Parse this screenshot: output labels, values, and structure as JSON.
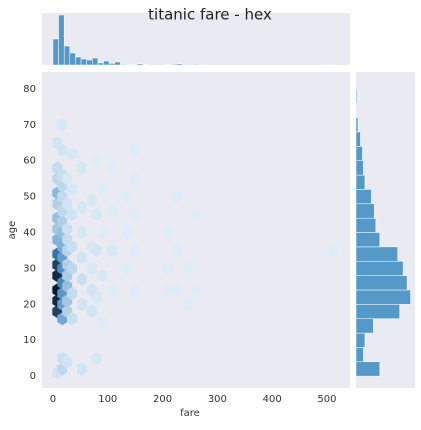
{
  "chart_data": [
    {
      "type": "hexbin",
      "title": "titanic fare - hex",
      "x_label": "fare",
      "y_label": "age",
      "xlim": [
        -20,
        542
      ],
      "ylim": [
        -3.3,
        84.7
      ],
      "xticks": [
        0,
        100,
        200,
        300,
        400,
        500
      ],
      "yticks": [
        0,
        10,
        20,
        30,
        40,
        50,
        60,
        70,
        80
      ],
      "grid": false,
      "colors": [
        "#e4f0f9",
        "#4a90c6",
        "#0c1a29"
      ],
      "x": [
        8,
        8,
        8,
        8,
        8,
        8,
        8,
        8,
        8,
        8,
        8,
        8,
        8,
        8,
        8,
        17,
        17,
        17,
        17,
        17,
        17,
        17,
        17,
        17,
        17,
        17,
        17,
        17,
        17,
        17,
        17,
        17,
        26,
        26,
        26,
        26,
        26,
        26,
        26,
        26,
        26,
        26,
        26,
        35,
        35,
        35,
        35,
        35,
        35,
        35,
        53,
        53,
        53,
        53,
        53,
        53,
        53,
        71,
        71,
        71,
        71,
        71,
        80,
        80,
        80,
        80,
        80,
        90,
        90,
        90,
        90,
        108,
        108,
        108,
        108,
        135,
        135,
        135,
        150,
        150,
        150,
        150,
        150,
        210,
        210,
        210,
        225,
        225,
        225,
        247,
        247,
        262,
        262,
        512
      ],
      "y": [
        1,
        18,
        21,
        24,
        28,
        31,
        34,
        38,
        41,
        44,
        48,
        51,
        55,
        58,
        65,
        2,
        5,
        16,
        20,
        23,
        26,
        30,
        33,
        36,
        40,
        43,
        46,
        50,
        53,
        56,
        63,
        70,
        4,
        18,
        21,
        25,
        28,
        31,
        35,
        38,
        41,
        48,
        55,
        16,
        23,
        30,
        36,
        45,
        52,
        62,
        2,
        20,
        27,
        33,
        40,
        47,
        58,
        18,
        24,
        30,
        36,
        49,
        5,
        22,
        35,
        45,
        60,
        15,
        28,
        40,
        52,
        24,
        35,
        46,
        58,
        30,
        40,
        50,
        24,
        35,
        45,
        55,
        63,
        24,
        30,
        40,
        24,
        35,
        50,
        20,
        30,
        24,
        45,
        35
      ],
      "counts": [
        3,
        40,
        45,
        48,
        45,
        40,
        30,
        15,
        10,
        12,
        8,
        14,
        6,
        5,
        3,
        6,
        4,
        18,
        20,
        22,
        25,
        24,
        20,
        16,
        12,
        8,
        6,
        5,
        6,
        4,
        3,
        2,
        3,
        8,
        10,
        12,
        9,
        8,
        7,
        5,
        4,
        3,
        2,
        4,
        5,
        6,
        4,
        3,
        2,
        2,
        3,
        3,
        4,
        3,
        2,
        2,
        2,
        3,
        3,
        2,
        2,
        2,
        2,
        2,
        3,
        2,
        1,
        1,
        2,
        1,
        1,
        1,
        2,
        1,
        1,
        1,
        1,
        1,
        1,
        1,
        1,
        1,
        1,
        1,
        1,
        1,
        1,
        1,
        1,
        1,
        1,
        1,
        1,
        1
      ]
    },
    {
      "type": "histogram",
      "orientation": "vertical",
      "color": "#5499c7",
      "xlim": [
        -20,
        542
      ],
      "ylim": [
        0,
        260
      ],
      "bins": [
        0,
        10.25,
        20.5,
        30.75,
        41,
        51.25,
        61.5,
        71.75,
        82,
        92.25,
        102.5,
        112.75,
        123,
        133.25,
        143.5,
        153.75,
        164,
        174.25,
        184.5,
        194.75,
        205,
        215.25,
        225.5,
        235.75,
        246,
        256.25,
        266.5,
        276.75,
        287,
        297.25,
        307.5,
        317.75,
        328,
        338.25,
        348.5,
        358.75,
        369,
        379.25,
        389.5,
        399.75,
        410,
        420.25,
        430.5,
        440.75,
        451,
        461.25,
        471.5,
        481.75,
        492,
        502.25,
        512.5
      ],
      "counts": [
        130,
        250,
        95,
        60,
        40,
        30,
        25,
        35,
        10,
        20,
        8,
        15,
        4,
        3,
        2,
        6,
        2,
        0,
        0,
        0,
        2,
        4,
        6,
        3,
        0,
        4,
        0,
        0,
        0,
        0,
        0,
        0,
        0,
        0,
        0,
        0,
        0,
        0,
        0,
        0,
        0,
        0,
        0,
        0,
        0,
        0,
        0,
        0,
        0,
        3
      ]
    },
    {
      "type": "histogram",
      "orientation": "horizontal",
      "color": "#5499c7",
      "xlim": [
        0,
        119
      ],
      "ylim": [
        -3.3,
        84.7
      ],
      "bins": [
        0,
        4,
        8,
        12,
        16,
        20,
        24,
        28,
        32,
        36,
        40,
        44,
        48,
        52,
        56,
        60,
        64,
        68,
        72,
        76,
        80
      ],
      "counts": [
        48,
        15,
        18,
        35,
        88,
        110,
        103,
        95,
        84,
        48,
        40,
        37,
        31,
        18,
        15,
        13,
        9,
        4,
        0,
        2
      ]
    }
  ]
}
